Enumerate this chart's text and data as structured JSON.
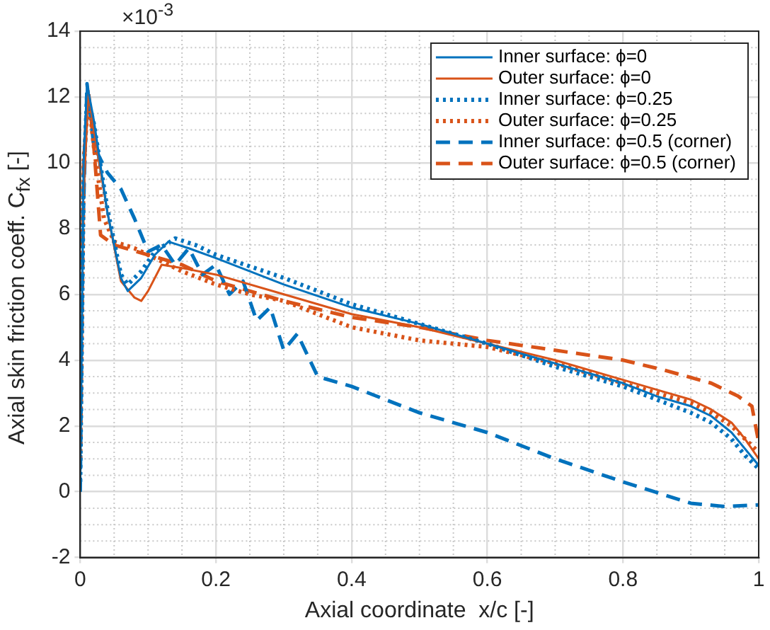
{
  "chart_data": {
    "type": "line",
    "xlabel": "Axial coordinate  x/c [-]",
    "ylabel": "Axial skin friction coeff.  C$_{fx}$ [-]",
    "annotations": [
      "×10$^{-3}$"
    ],
    "xlim": [
      0,
      1
    ],
    "xticks": [
      0,
      0.2,
      0.4,
      0.6,
      0.8,
      1
    ],
    "ylim": [
      -2,
      14
    ],
    "yticks": [
      -2,
      0,
      2,
      4,
      6,
      8,
      10,
      12,
      14
    ],
    "grid": true,
    "legend": "top right",
    "marker": "none",
    "series": [
      {
        "name": "Inner surface: ϕ=0",
        "color": "#0072bd",
        "line_style": "solid",
        "x": [
          0,
          0.005,
          0.01,
          0.02,
          0.04,
          0.06,
          0.07,
          0.09,
          0.11,
          0.13,
          0.16,
          0.2,
          0.3,
          0.4,
          0.5,
          0.6,
          0.7,
          0.8,
          0.85,
          0.9,
          0.93,
          0.96,
          0.98,
          1
        ],
        "values": [
          0,
          10,
          12.4,
          11.3,
          8.5,
          6.5,
          6.1,
          6.5,
          7.2,
          7.6,
          7.4,
          7.1,
          6.3,
          5.6,
          5.1,
          4.5,
          3.9,
          3.3,
          2.9,
          2.6,
          2.3,
          1.8,
          1.3,
          0.8
        ]
      },
      {
        "name": "Outer surface: ϕ=0",
        "color": "#d95319",
        "line_style": "solid",
        "x": [
          0.005,
          0.012,
          0.02,
          0.04,
          0.06,
          0.08,
          0.09,
          0.1,
          0.12,
          0.15,
          0.2,
          0.3,
          0.4,
          0.5,
          0.6,
          0.7,
          0.8,
          0.85,
          0.9,
          0.93,
          0.96,
          0.98,
          1
        ],
        "values": [
          9,
          12.2,
          11,
          8.5,
          6.4,
          5.9,
          5.8,
          6.1,
          6.9,
          6.8,
          6.6,
          6.0,
          5.4,
          5.0,
          4.5,
          4.0,
          3.4,
          3.1,
          2.8,
          2.5,
          2.1,
          1.6,
          1.0
        ]
      },
      {
        "name": "Inner surface: ϕ=0.25",
        "color": "#0072bd",
        "line_style": "dotted",
        "x": [
          0,
          0.005,
          0.01,
          0.02,
          0.04,
          0.06,
          0.07,
          0.09,
          0.11,
          0.14,
          0.17,
          0.2,
          0.3,
          0.4,
          0.5,
          0.6,
          0.7,
          0.8,
          0.85,
          0.9,
          0.93,
          0.96,
          0.98,
          1
        ],
        "values": [
          0.3,
          9.5,
          12,
          11.2,
          8.6,
          6.6,
          6.3,
          6.7,
          7.3,
          7.7,
          7.5,
          7.2,
          6.5,
          5.7,
          5.1,
          4.5,
          3.8,
          3.2,
          2.8,
          2.4,
          2.1,
          1.6,
          1.1,
          0.7
        ]
      },
      {
        "name": "Outer surface: ϕ=0.25",
        "color": "#d95319",
        "line_style": "dotted",
        "x": [
          0,
          0.005,
          0.012,
          0.02,
          0.035,
          0.05,
          0.08,
          0.1,
          0.15,
          0.2,
          0.25,
          0.3,
          0.4,
          0.5,
          0.6,
          0.7,
          0.8,
          0.85,
          0.9,
          0.93,
          0.96,
          0.98,
          1
        ],
        "values": [
          1,
          10,
          12,
          10.5,
          8.3,
          7.6,
          7.4,
          7.2,
          6.7,
          6.3,
          6.0,
          5.8,
          5.0,
          4.6,
          4.4,
          3.9,
          3.3,
          3.0,
          2.7,
          2.4,
          2.0,
          1.6,
          1.2
        ]
      },
      {
        "name": "Inner surface: ϕ=0.5 (corner)",
        "color": "#0072bd",
        "line_style": "dashed",
        "x": [
          0,
          0.004,
          0.01,
          0.02,
          0.04,
          0.06,
          0.08,
          0.1,
          0.12,
          0.14,
          0.16,
          0.18,
          0.2,
          0.22,
          0.24,
          0.26,
          0.28,
          0.3,
          0.32,
          0.35,
          0.4,
          0.45,
          0.5,
          0.6,
          0.7,
          0.8,
          0.9,
          0.95,
          1
        ],
        "values": [
          0,
          8,
          12.4,
          10.5,
          9.7,
          9.2,
          8.3,
          7.3,
          7.5,
          6.9,
          7.4,
          6.6,
          6.9,
          6.0,
          6.4,
          5.2,
          5.6,
          4.3,
          4.8,
          3.5,
          3.2,
          2.8,
          2.4,
          1.8,
          1.0,
          0.3,
          -0.35,
          -0.45,
          -0.4
        ]
      },
      {
        "name": "Outer surface: ϕ=0.5 (corner)",
        "color": "#d95319",
        "line_style": "dashed",
        "x": [
          0,
          0.005,
          0.012,
          0.02,
          0.03,
          0.05,
          0.1,
          0.15,
          0.2,
          0.3,
          0.4,
          0.5,
          0.6,
          0.7,
          0.8,
          0.86,
          0.93,
          0.97,
          0.99,
          1
        ],
        "values": [
          2,
          10,
          12.2,
          10.5,
          7.8,
          7.5,
          7.2,
          6.9,
          6.4,
          5.8,
          5.3,
          5.0,
          4.6,
          4.3,
          4.0,
          3.7,
          3.3,
          2.9,
          2.6,
          1.5
        ]
      }
    ]
  }
}
